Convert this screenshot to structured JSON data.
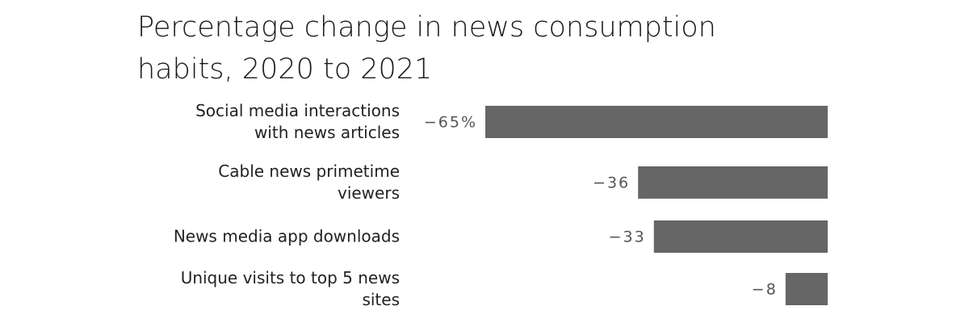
{
  "chart_data": {
    "type": "bar",
    "orientation": "horizontal",
    "title": "Percentage change in news consumption habits, 2020 to 2021",
    "categories": [
      "Social media interactions with news articles",
      "Cable news primetime viewers",
      "News media app downloads",
      "Unique visits to top 5 news sites"
    ],
    "values": [
      -65,
      -36,
      -33,
      -8
    ],
    "value_labels": [
      "−65%",
      "−36",
      "−33",
      "−8"
    ],
    "color": "#666666",
    "xlim": [
      -65,
      0
    ]
  }
}
